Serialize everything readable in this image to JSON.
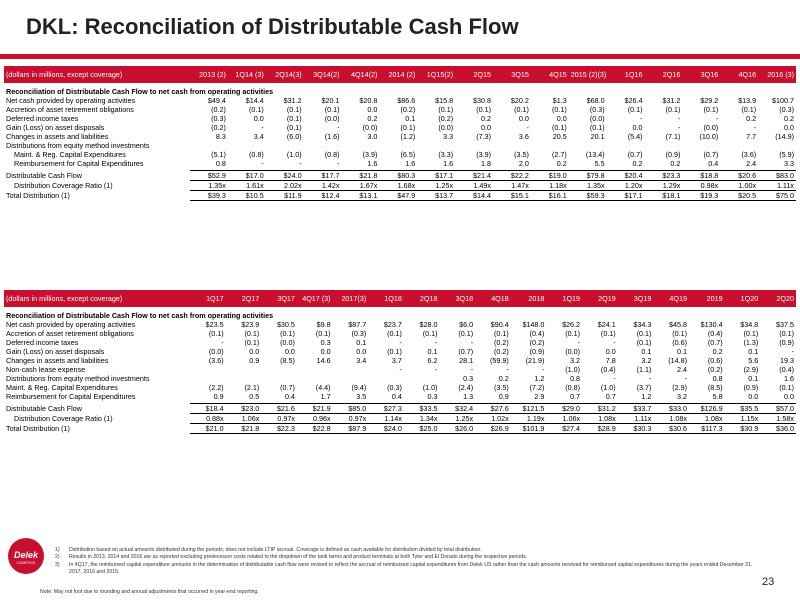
{
  "title": "DKL: Reconciliation of Distributable Cash Flow",
  "table1": {
    "header_label": "(dollars in millions, except coverage)",
    "columns": [
      "2013 (2)",
      "1Q14 (3)",
      "2Q14(3)",
      "3Q14(2)",
      "4Q14(2)",
      "2014 (2)",
      "1Q15(2)",
      "2Q15",
      "3Q15",
      "4Q15",
      "2015 (2)(3)",
      "1Q16",
      "2Q16",
      "3Q16",
      "4Q16",
      "2016 (3)"
    ],
    "section_label": "Reconciliation of Distributable Cash Flow to net cash from operating activities",
    "rows": [
      {
        "label": "Net cash provided by operating activities",
        "values": [
          "$49.4",
          "$14.4",
          "$31.2",
          "$20.1",
          "$20.8",
          "$86.6",
          "$15.8",
          "$30.8",
          "$20.2",
          "$1.3",
          "$68.0",
          "$26.4",
          "$31.2",
          "$29.2",
          "$13.9",
          "$100.7"
        ]
      },
      {
        "label": "Accretion of asset retirement obligations",
        "values": [
          "(0.2)",
          "(0.1)",
          "(0.1)",
          "(0.1)",
          "0.0",
          "(0.2)",
          "(0.1)",
          "(0.1)",
          "(0.1)",
          "(0.1)",
          "(0.3)",
          "(0.1)",
          "(0.1)",
          "(0.1)",
          "(0.1)",
          "(0.3)"
        ]
      },
      {
        "label": "Deferred income taxes",
        "values": [
          "(0.3)",
          "0.0",
          "(0.1)",
          "(0.0)",
          "0.2",
          "0.1",
          "(0.2)",
          "0.2",
          "0.0",
          "0.0",
          "(0.0)",
          "-",
          "-",
          "-",
          "0.2",
          "0.2"
        ]
      },
      {
        "label": "Gain (Loss) on asset disposals",
        "values": [
          "(0.2)",
          "-",
          "(0.1)",
          "-",
          "(0.0)",
          "(0.1)",
          "(0.0)",
          "0.0",
          "-",
          "(0.1)",
          "(0.1)",
          "0.0",
          "-",
          "(0.0)",
          "-",
          "0.0"
        ]
      },
      {
        "label": "Changes in assets and liabilities",
        "values": [
          "8.3",
          "3.4",
          "(6.0)",
          "(1.6)",
          "3.0",
          "(1.2)",
          "3.3",
          "(7.3)",
          "3.6",
          "20.5",
          "20.1",
          "(5.4)",
          "(7.1)",
          "(10.0)",
          "7.7",
          "(14.9)"
        ]
      },
      {
        "label": "Distributions from equity method investments",
        "values": [
          "",
          "",
          "",
          "",
          "",
          "",
          "",
          "",
          "",
          "",
          "",
          "",
          "",
          "",
          "",
          ""
        ]
      },
      {
        "label": "Maint. & Reg. Capital Expenditures",
        "indent": true,
        "values": [
          "(5.1)",
          "(0.8)",
          "(1.0)",
          "(0.8)",
          "(3.9)",
          "(6.5)",
          "(3.3)",
          "(3.9)",
          "(3.5)",
          "(2.7)",
          "(13.4)",
          "(0.7)",
          "(0.9)",
          "(0.7)",
          "(3.6)",
          "(5.9)"
        ]
      },
      {
        "label": "Reimbursement for Capital Expenditures",
        "indent": true,
        "values": [
          "0.8",
          "-",
          "-",
          "-",
          "1.6",
          "1.6",
          "1.6",
          "1.8",
          "2.0",
          "0.2",
          "5.5",
          "0.2",
          "0.2",
          "0.4",
          "2.4",
          "3.3"
        ]
      }
    ],
    "dcf": {
      "label": "Distributable Cash Flow",
      "values": [
        "$52.9",
        "$17.0",
        "$24.0",
        "$17.7",
        "$21.8",
        "$80.3",
        "$17.1",
        "$21.4",
        "$22.2",
        "$19.0",
        "$79.8",
        "$20.4",
        "$23.3",
        "$18.8",
        "$20.6",
        "$83.0"
      ]
    },
    "ratio": {
      "label": "Distribution Coverage Ratio (1)",
      "values": [
        "1.35x",
        "1.61x",
        "2.02x",
        "1.42x",
        "1.67x",
        "1.68x",
        "1.25x",
        "1.49x",
        "1.47x",
        "1.18x",
        "1.35x",
        "1.20x",
        "1.29x",
        "0.98x",
        "1.00x",
        "1.11x"
      ]
    },
    "dist": {
      "label": "Total Distribution (1)",
      "values": [
        "$39.3",
        "$10.5",
        "$11.9",
        "$12.4",
        "$13.1",
        "$47.9",
        "$13.7",
        "$14.4",
        "$15.1",
        "$16.1",
        "$59.3",
        "$17.1",
        "$18.1",
        "$19.3",
        "$20.5",
        "$75.0"
      ]
    }
  },
  "table2": {
    "header_label": "(dollars in millions, except coverage)",
    "columns": [
      "1Q17",
      "2Q17",
      "3Q17",
      "4Q17 (3)",
      "2017(3)",
      "1Q18",
      "2Q18",
      "3Q18",
      "4Q18",
      "2018",
      "1Q19",
      "2Q19",
      "3Q19",
      "4Q19",
      "2019",
      "1Q20",
      "2Q20"
    ],
    "section_label": "Reconciliation of Distributable Cash Flow to net cash from operating activities",
    "rows": [
      {
        "label": "Net cash provided by operating activities",
        "values": [
          "$23.5",
          "$23.9",
          "$30.5",
          "$9.8",
          "$87.7",
          "$23.7",
          "$28.0",
          "$6.0",
          "$90.4",
          "$148.0",
          "$26.2",
          "$24.1",
          "$34.3",
          "$45.8",
          "$130.4",
          "$34.8",
          "$37.5"
        ]
      },
      {
        "label": "Accretion of asset retirement obligations",
        "values": [
          "(0.1)",
          "(0.1)",
          "(0.1)",
          "(0.1)",
          "(0.3)",
          "(0.1)",
          "(0.1)",
          "(0.1)",
          "(0.1)",
          "(0.4)",
          "(0.1)",
          "(0.1)",
          "(0.1)",
          "(0.1)",
          "(0.4)",
          "(0.1)",
          "(0.1)"
        ]
      },
      {
        "label": "Deferred income taxes",
        "values": [
          "-",
          "(0.1)",
          "(0.0)",
          "0.3",
          "0.1",
          "-",
          "-",
          "-",
          "(0.2)",
          "(0.2)",
          "-",
          "-",
          "(0.1)",
          "(0.6)",
          "(0.7)",
          "(1.3)",
          "(0.9)"
        ]
      },
      {
        "label": "Gain (Loss) on asset disposals",
        "values": [
          "(0.0)",
          "0.0",
          "0.0",
          "0.0",
          "0.0",
          "(0.1)",
          "0.1",
          "(0.7)",
          "(0.2)",
          "(0.9)",
          "(0.0)",
          "0.0",
          "0.1",
          "0.1",
          "0.2",
          "0.1",
          "-"
        ]
      },
      {
        "label": "Changes in assets and liabilities",
        "values": [
          "(3.6)",
          "0.9",
          "(8.5)",
          "14.6",
          "3.4",
          "3.7",
          "6.2",
          "28.1",
          "(59.9)",
          "(21.9)",
          "3.2",
          "7.8",
          "3.2",
          "(14.8)",
          "(0.6)",
          "5.6",
          "19.3"
        ]
      },
      {
        "label": "Non-cash lease expense",
        "values": [
          "",
          "",
          "",
          "",
          "",
          "-",
          "-",
          "-",
          "-",
          "-",
          "(1.0)",
          "(0.4)",
          "(1.1)",
          "2.4",
          "(0.2)",
          "(2.9)",
          "(0.4)"
        ]
      },
      {
        "label": "Distributions from equity method investments",
        "values": [
          "",
          "",
          "",
          "",
          "",
          "",
          "",
          "0.3",
          "0.2",
          "1.2",
          "0.8",
          "-",
          "-",
          "-",
          "0.8",
          "0.1",
          "1.6"
        ]
      },
      {
        "label": "Maint. & Reg. Capital Expenditures",
        "values": [
          "(2.2)",
          "(2.1)",
          "(0.7)",
          "(4.4)",
          "(9.4)",
          "(0.3)",
          "(1.0)",
          "(2.4)",
          "(3.5)",
          "(7.2)",
          "(0.8)",
          "(1.0)",
          "(3.7)",
          "(2.9)",
          "(8.5)",
          "(0.9)",
          "(0.1)"
        ]
      },
      {
        "label": "Reimbursement for Capital Expenditures",
        "values": [
          "0.9",
          "0.5",
          "0.4",
          "1.7",
          "3.5",
          "0.4",
          "0.3",
          "1.3",
          "0.9",
          "2.9",
          "0.7",
          "0.7",
          "1.2",
          "3.2",
          "5.8",
          "0.0",
          "0.0"
        ]
      }
    ],
    "dcf": {
      "label": "Distributable Cash Flow",
      "values": [
        "$18.4",
        "$23.0",
        "$21.6",
        "$21.9",
        "$85.0",
        "$27.3",
        "$33.5",
        "$32.4",
        "$27.6",
        "$121.5",
        "$29.0",
        "$31.2",
        "$33.7",
        "$33.0",
        "$126.9",
        "$35.5",
        "$57.0"
      ]
    },
    "ratio": {
      "label": "Distribution Coverage Ratio (1)",
      "values": [
        "0.88x",
        "1.06x",
        "0.97x",
        "0.96x",
        "0.97x",
        "1.14x",
        "1.34x",
        "1.25x",
        "1.02x",
        "1.19x",
        "1.06x",
        "1.08x",
        "1.11x",
        "1.08x",
        "1.08x",
        "1.15x",
        "1.58x"
      ]
    },
    "dist": {
      "label": "Total Distribution (1)",
      "values": [
        "$21.0",
        "$21.8",
        "$22.3",
        "$22.8",
        "$87.9",
        "$24.0",
        "$25.0",
        "$26.0",
        "$26.9",
        "$101.9",
        "$27.4",
        "$28.9",
        "$30.3",
        "$30.6",
        "$117.3",
        "$30.9",
        "$36.0"
      ]
    }
  },
  "footnotes": [
    {
      "num": "1)",
      "text": "Distribution based on actual amounts distributed during the periods; does not include LTIP accrual. Coverage is defined as cash available for distribution divided by total distribution."
    },
    {
      "num": "2)",
      "text": "Results in 2013, 2014 and 2015 are as reported excluding predecessor costs related to the dropdown of the tank farms and product terminals at both Tyler and El Dorado during the respective periods."
    },
    {
      "num": "3)",
      "text": "In 4Q17, the reimbursed capital expenditure amounts in the determination of distributable cash flow were revised to reflect the accrual of reimbursed capital expenditures from Delek US rather than the cash amounts received for reimbursed capital expenditures during the years ended December 31, 2017, 2016 and 2015."
    }
  ],
  "note": "Note: May not foot due to rounding and annual adjustments that occurred in year-end reporting.",
  "logo": {
    "text": "Delek",
    "sub": "LOGISTICS"
  },
  "page_number": "23",
  "colors": {
    "accent": "#c8102e"
  }
}
